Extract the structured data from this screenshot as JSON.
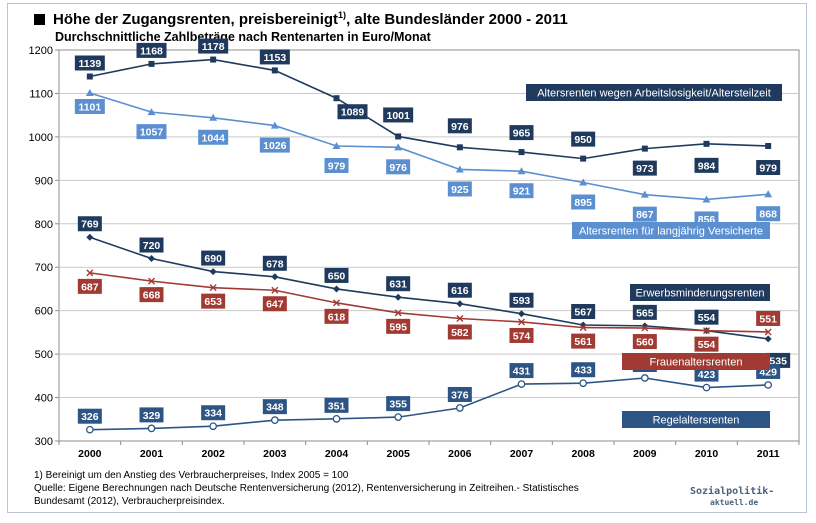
{
  "title": "Höhe der Zugangsrenten, preisbereinigt",
  "title_footnote_mark": "1)",
  "title_suffix": ", alte Bundesländer 2000 - 2011",
  "subtitle": "Durchschnittliche Zahlbeträge nach Rentenarten in Euro/Monat",
  "footnote_lines": [
    "1) Bereinigt um den Anstieg des Verbraucherpreises, Index 2005 = 100",
    "Quelle: Eigene Berechnungen nach Deutsche Rentenversicherung (2012), Rentenversicherung in Zeitreihen.- Statistisches",
    "Bundesamt (2012), Verbraucherpreisindex."
  ],
  "brand": {
    "name": "Sozialpolitik-",
    "tld": "aktuell.de"
  },
  "chart_data": {
    "type": "line",
    "x": [
      "2000",
      "2001",
      "2002",
      "2003",
      "2004",
      "2005",
      "2006",
      "2007",
      "2008",
      "2009",
      "2010",
      "2011"
    ],
    "ylim": [
      300,
      1200
    ],
    "yticks": [
      300,
      400,
      500,
      600,
      700,
      800,
      900,
      1000,
      1100,
      1200
    ],
    "grid": true,
    "series": [
      {
        "name": "Altersrenten wegen Arbeitslosigkeit/Altersteilzeit",
        "color": "#1f3a5c",
        "marker": "square",
        "values": [
          1139,
          1168,
          1178,
          1153,
          1089,
          1001,
          976,
          965,
          950,
          973,
          984,
          979
        ]
      },
      {
        "name": "Altersrenten für langjährig Versicherte",
        "color": "#5b8fd0",
        "marker": "triangle",
        "values": [
          1101,
          1057,
          1044,
          1026,
          979,
          976,
          925,
          921,
          895,
          867,
          856,
          868
        ]
      },
      {
        "name": "Erwerbsminderungsrenten",
        "color": "#1f3a5c",
        "marker": "diamond",
        "values": [
          769,
          720,
          690,
          678,
          650,
          631,
          616,
          593,
          567,
          565,
          554,
          535
        ]
      },
      {
        "name": "Frauenaltersrenten",
        "color": "#a23a34",
        "marker": "x",
        "values": [
          687,
          668,
          653,
          647,
          618,
          595,
          582,
          574,
          561,
          560,
          554,
          551
        ]
      },
      {
        "name": "Regelaltersrenten",
        "color": "#2c5585",
        "marker": "circle",
        "values": [
          326,
          329,
          334,
          348,
          351,
          355,
          376,
          431,
          433,
          445,
          423,
          429
        ]
      }
    ]
  }
}
